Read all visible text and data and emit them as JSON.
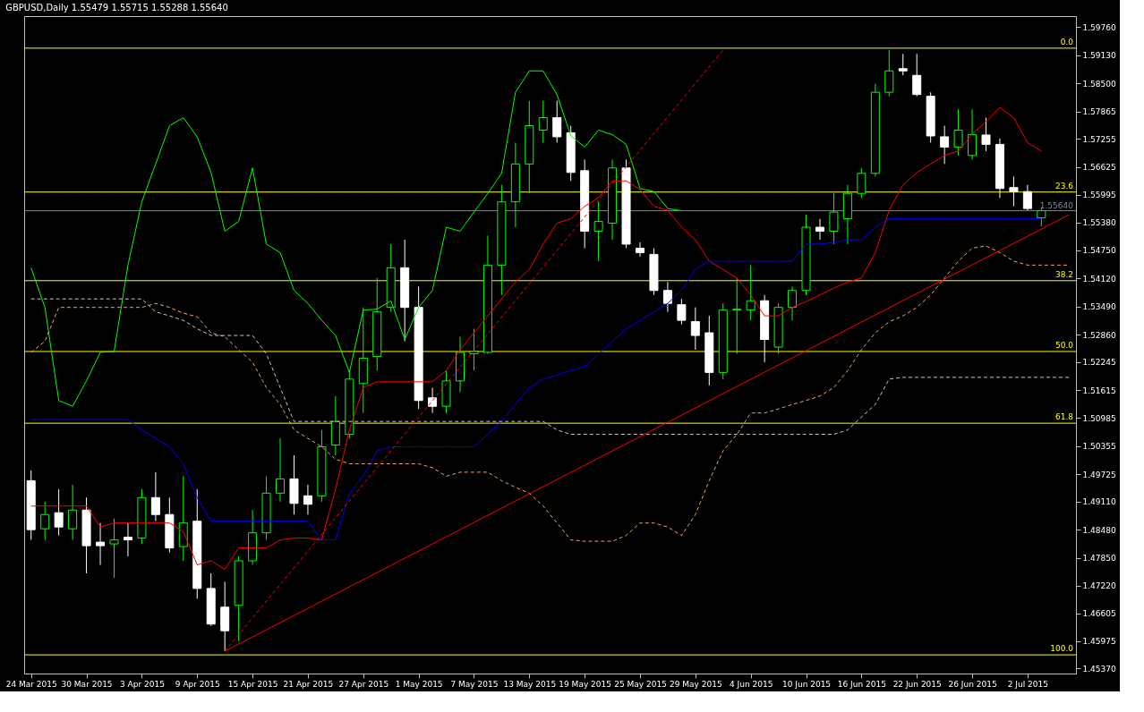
{
  "chart_data": {
    "type": "candlestick",
    "title": "GBPUSD,Daily 1.55479 1.55715 1.55288 1.55640",
    "categories": [
      "24 Mar 2015",
      null,
      null,
      null,
      "30 Mar 2015",
      null,
      null,
      null,
      "3 Apr 2015",
      null,
      null,
      null,
      "9 Apr 2015",
      null,
      null,
      null,
      "15 Apr 2015",
      null,
      null,
      null,
      "21 Apr 2015",
      null,
      null,
      null,
      "27 Apr 2015",
      null,
      null,
      null,
      "1 May 2015",
      null,
      null,
      null,
      "7 May 2015",
      null,
      null,
      null,
      "13 May 2015",
      null,
      null,
      null,
      "19 May 2015",
      null,
      null,
      null,
      "25 May 2015",
      null,
      null,
      null,
      "29 May 2015",
      null,
      null,
      null,
      "4 Jun 2015",
      null,
      null,
      null,
      "10 Jun 2015",
      null,
      null,
      null,
      "16 Jun 2015",
      null,
      null,
      null,
      "22 Jun 2015",
      null,
      null,
      null,
      "26 Jun 2015",
      null,
      null,
      null,
      "2 Jul 2015",
      null,
      null,
      null
    ],
    "ohlc": [
      [
        1.4958,
        1.4981,
        1.4825,
        1.4848
      ],
      [
        1.485,
        1.4911,
        1.4825,
        1.4882
      ],
      [
        1.4886,
        1.4939,
        1.4835,
        1.4854
      ],
      [
        1.485,
        1.4949,
        1.4825,
        1.4892
      ],
      [
        1.4892,
        1.492,
        1.475,
        1.4812
      ],
      [
        1.482,
        1.4863,
        1.4769,
        1.4812
      ],
      [
        1.4816,
        1.4873,
        1.474,
        1.4825
      ],
      [
        1.4831,
        1.4863,
        1.4788,
        1.4825
      ],
      [
        1.4829,
        1.4939,
        1.4816,
        1.492
      ],
      [
        1.492,
        1.4977,
        1.4867,
        1.4882
      ],
      [
        1.4882,
        1.492,
        1.4797,
        1.4807
      ],
      [
        1.481,
        1.4968,
        1.4778,
        1.4863
      ],
      [
        1.4867,
        1.4939,
        1.4693,
        1.4716
      ],
      [
        1.4716,
        1.475,
        1.4632,
        1.4636
      ],
      [
        1.4674,
        1.4731,
        1.4575,
        1.4621
      ],
      [
        1.4678,
        1.4788,
        1.4598,
        1.4778
      ],
      [
        1.4778,
        1.4892,
        1.4769,
        1.4841
      ],
      [
        1.4841,
        1.4968,
        1.4825,
        1.493
      ],
      [
        1.493,
        1.5053,
        1.4911,
        1.4962
      ],
      [
        1.4962,
        1.5015,
        1.4882,
        1.4907
      ],
      [
        1.4924,
        1.4949,
        1.4882,
        1.4905
      ],
      [
        1.4924,
        1.5072,
        1.4911,
        1.5034
      ],
      [
        1.5038,
        1.5148,
        1.5015,
        1.5091
      ],
      [
        1.5062,
        1.5205,
        1.5053,
        1.5186
      ],
      [
        1.5176,
        1.5347,
        1.511,
        1.5233
      ],
      [
        1.5237,
        1.5413,
        1.5205,
        1.5337
      ],
      [
        1.5347,
        1.5489,
        1.5337,
        1.5436
      ],
      [
        1.5436,
        1.5499,
        1.5271,
        1.5347
      ],
      [
        1.5347,
        1.5394,
        1.5119,
        1.5138
      ],
      [
        1.5144,
        1.5167,
        1.511,
        1.5125
      ],
      [
        1.5125,
        1.5205,
        1.511,
        1.5182
      ],
      [
        1.5182,
        1.5281,
        1.5157,
        1.5246
      ],
      [
        1.5243,
        1.5299,
        1.5205,
        1.5248
      ],
      [
        1.5246,
        1.5508,
        1.5243,
        1.5442
      ],
      [
        1.5442,
        1.5622,
        1.5375,
        1.5584
      ],
      [
        1.5584,
        1.5717,
        1.5527,
        1.5669
      ],
      [
        1.5669,
        1.5811,
        1.5603,
        1.5755
      ],
      [
        1.5745,
        1.5811,
        1.5717,
        1.5773
      ],
      [
        1.5773,
        1.5811,
        1.5717,
        1.573
      ],
      [
        1.5739,
        1.5755,
        1.5631,
        1.565
      ],
      [
        1.5654,
        1.5679,
        1.548,
        1.5518
      ],
      [
        1.5518,
        1.5584,
        1.5451,
        1.554
      ],
      [
        1.5536,
        1.5679,
        1.5499,
        1.566
      ],
      [
        1.566,
        1.5679,
        1.548,
        1.5489
      ],
      [
        1.548,
        1.5493,
        1.5461,
        1.547
      ],
      [
        1.5466,
        1.548,
        1.5375,
        1.5385
      ],
      [
        1.5385,
        1.5404,
        1.5337,
        1.5356
      ],
      [
        1.5353,
        1.5366,
        1.5309,
        1.5318
      ],
      [
        1.5315,
        1.5347,
        1.5252,
        1.5284
      ],
      [
        1.529,
        1.5328,
        1.5172,
        1.5201
      ],
      [
        1.5201,
        1.5356,
        1.5186,
        1.5341
      ],
      [
        1.5341,
        1.5413,
        1.5243,
        1.5343
      ],
      [
        1.5341,
        1.5442,
        1.5318,
        1.5362
      ],
      [
        1.5362,
        1.5375,
        1.5224,
        1.5275
      ],
      [
        1.5258,
        1.5356,
        1.5243,
        1.5347
      ],
      [
        1.5347,
        1.5394,
        1.5318,
        1.5385
      ],
      [
        1.5385,
        1.5555,
        1.5375,
        1.5527
      ],
      [
        1.5527,
        1.5546,
        1.5499,
        1.5518
      ],
      [
        1.5518,
        1.5603,
        1.5489,
        1.5561
      ],
      [
        1.5546,
        1.5622,
        1.5489,
        1.5603
      ],
      [
        1.5603,
        1.566,
        1.5593,
        1.5648
      ],
      [
        1.5648,
        1.5849,
        1.5641,
        1.583
      ],
      [
        1.583,
        1.5925,
        1.5821,
        1.5878
      ],
      [
        1.5883,
        1.5916,
        1.5868,
        1.5878
      ],
      [
        1.5868,
        1.5916,
        1.5821,
        1.5825
      ],
      [
        1.5821,
        1.583,
        1.5717,
        1.5732
      ],
      [
        1.573,
        1.5755,
        1.5669,
        1.5707
      ],
      [
        1.5707,
        1.5792,
        1.5688,
        1.5745
      ],
      [
        1.5688,
        1.5792,
        1.5679,
        1.5735
      ],
      [
        1.5734,
        1.5773,
        1.5698,
        1.5713
      ],
      [
        1.5713,
        1.5726,
        1.5593,
        1.5614
      ],
      [
        1.5616,
        1.5641,
        1.5574,
        1.5607
      ],
      [
        1.5607,
        1.5622,
        1.5565,
        1.5569
      ],
      [
        1.5548,
        1.5572,
        1.5529,
        1.5564
      ],
      null,
      null
    ],
    "colors": [
      "#ffffff",
      "#00ff00",
      "#ffffff",
      "#00ff00",
      "#ffffff",
      "#ffffff",
      "#00ff00",
      "#ffffff",
      "#00ff00",
      "#ffffff",
      "#ffffff",
      "#00ff00",
      "#ffffff",
      "#ffffff",
      "#ffffff",
      "#00ff00",
      "#00ff00",
      "#00ff00",
      "#00ff00",
      "#ffffff",
      "#ffffff",
      "#00ff00",
      "#00ff00",
      "#00ff00",
      "#00ff00",
      "#00ff00",
      "#00ff00",
      "#ffffff",
      "#ffffff",
      "#ffffff",
      "#00ff00",
      "#00ff00",
      "#00ff00",
      "#00ff00",
      "#00ff00",
      "#00ff00",
      "#00ff00",
      "#00ff00",
      "#ffffff",
      "#ffffff",
      "#ffffff",
      "#00ff00",
      "#00ff00",
      "#ffffff",
      "#ffffff",
      "#ffffff",
      "#ffffff",
      "#ffffff",
      "#ffffff",
      "#ffffff",
      "#00ff00",
      "#00ff00",
      "#00ff00",
      "#ffffff",
      "#00ff00",
      "#00ff00",
      "#00ff00",
      "#ffffff",
      "#00ff00",
      "#00ff00",
      "#00ff00",
      "#00ff00",
      "#00ff00",
      "#ffffff",
      "#ffffff",
      "#ffffff",
      "#ffffff",
      "#00ff00",
      "#00ff00",
      "#ffffff",
      "#ffffff",
      "#ffffff",
      "#ffffff",
      "#00ff00",
      null,
      null
    ],
    "series": [
      {
        "type": "line",
        "color": "#ff0000",
        "line_style": "solid",
        "values": [
          1.4901,
          1.4901,
          1.4901,
          1.4901,
          1.4901,
          1.4854,
          1.4863,
          1.4863,
          1.4863,
          1.4863,
          1.4863,
          1.4844,
          1.4769,
          1.4778,
          1.4759,
          1.4807,
          1.4807,
          1.4807,
          1.4825,
          1.4829,
          1.4829,
          1.4825,
          1.4939,
          1.5072,
          1.5167,
          1.518,
          1.518,
          1.518,
          1.518,
          1.518,
          1.5205,
          1.5252,
          1.529,
          1.5328,
          1.5366,
          1.5404,
          1.5432,
          1.5489,
          1.5536,
          1.5546,
          1.5574,
          1.5593,
          1.5631,
          1.5631,
          1.5612,
          1.5574,
          1.5565,
          1.5527,
          1.5499,
          1.5451,
          1.5432,
          1.5413,
          1.5375,
          1.5328,
          1.5328,
          1.5347,
          1.536,
          1.5375,
          1.539,
          1.5404,
          1.5413,
          1.547,
          1.5565,
          1.5622,
          1.565,
          1.5669,
          1.5688,
          1.5698,
          1.5736,
          1.5764,
          1.5796,
          1.5773,
          1.5717,
          1.5698,
          null,
          null
        ]
      },
      {
        "type": "line",
        "color": "#0000ff",
        "line_style": "solid",
        "values": [
          1.5095,
          1.5095,
          1.5095,
          1.5095,
          1.5095,
          1.5095,
          1.5095,
          1.5095,
          1.5072,
          1.5053,
          1.5034,
          1.4996,
          1.492,
          1.4867,
          1.4867,
          1.4867,
          1.4867,
          1.4867,
          1.4867,
          1.4867,
          1.4867,
          1.4825,
          1.4825,
          1.493,
          1.4968,
          1.5025,
          1.5034,
          1.5034,
          1.5034,
          1.5034,
          1.5034,
          1.5034,
          1.5034,
          1.5062,
          1.5091,
          1.5129,
          1.5167,
          1.5186,
          1.5195,
          1.5205,
          1.5214,
          1.5243,
          1.5271,
          1.5299,
          1.5318,
          1.5337,
          1.5356,
          1.5385,
          1.5432,
          1.5451,
          1.5451,
          1.5451,
          1.5451,
          1.5451,
          1.5451,
          1.5451,
          1.5489,
          1.5489,
          1.5493,
          1.5499,
          1.5499,
          1.5527,
          1.5546,
          1.5546,
          1.5546,
          1.5546,
          1.5546,
          1.5546,
          1.5546,
          1.5546,
          1.5546,
          1.5546,
          1.5546,
          1.5546,
          null,
          null
        ]
      },
      {
        "type": "line",
        "color": "#00ff00",
        "line_style": "solid",
        "values": [
          1.5436,
          1.5347,
          1.5138,
          1.5125,
          1.5182,
          1.5246,
          1.5248,
          1.5442,
          1.5584,
          1.5669,
          1.5755,
          1.5773,
          1.573,
          1.565,
          1.5518,
          1.554,
          1.566,
          1.5489,
          1.547,
          1.5385,
          1.5356,
          1.5318,
          1.5284,
          1.5201,
          1.5341,
          1.5343,
          1.5362,
          1.5275,
          1.5347,
          1.5385,
          1.5527,
          1.5518,
          1.5561,
          1.5603,
          1.5648,
          1.583,
          1.5878,
          1.5878,
          1.5825,
          1.5732,
          1.5707,
          1.5745,
          1.5735,
          1.5713,
          1.5614,
          1.5607,
          1.5569,
          1.5564,
          null,
          null,
          null,
          null,
          null,
          null,
          null,
          null,
          null,
          null,
          null,
          null,
          null,
          null,
          null,
          null,
          null,
          null,
          null,
          null,
          null,
          null,
          null,
          null,
          null,
          null,
          null,
          null
        ]
      },
      {
        "type": "line",
        "color": "#f4a460",
        "line_style": "dashed",
        "values": [
          1.5246,
          1.5271,
          1.5347,
          1.5347,
          1.5347,
          1.5347,
          1.5347,
          1.5347,
          1.5347,
          1.5356,
          1.5347,
          1.5334,
          1.5326,
          1.529,
          1.5281,
          1.5252,
          1.5224,
          1.5167,
          1.5129,
          1.5072,
          1.5053,
          1.5034,
          1.5006,
          1.4996,
          1.4996,
          1.4996,
          1.4996,
          1.4996,
          1.4996,
          1.4987,
          1.4968,
          1.4977,
          1.4977,
          1.4977,
          1.4958,
          1.4943,
          1.493,
          1.4901,
          1.4863,
          1.4825,
          1.4822,
          1.4822,
          1.4822,
          1.4835,
          1.4863,
          1.4863,
          1.4854,
          1.4835,
          1.4882,
          1.4958,
          1.5025,
          1.5062,
          1.511,
          1.511,
          1.5119,
          1.5129,
          1.5138,
          1.5148,
          1.5167,
          1.5205,
          1.5252,
          1.529,
          1.5315,
          1.5328,
          1.5347,
          1.5375,
          1.5413,
          1.5451,
          1.548,
          1.5485,
          1.547,
          1.5451,
          1.5442,
          1.5442,
          1.5442,
          1.5442
        ]
      },
      {
        "type": "line",
        "color": "#d8bfd8",
        "line_style": "dashed",
        "values": [
          1.5366,
          1.5366,
          1.5366,
          1.5366,
          1.5366,
          1.5366,
          1.5366,
          1.5366,
          1.5366,
          1.5337,
          1.5328,
          1.5318,
          1.5299,
          1.5284,
          1.5284,
          1.5284,
          1.5284,
          1.5243,
          1.5167,
          1.5091,
          1.5091,
          1.5091,
          1.5091,
          1.5091,
          1.5091,
          1.5091,
          1.5091,
          1.5091,
          1.5091,
          1.5091,
          1.5091,
          1.5091,
          1.5091,
          1.5091,
          1.5091,
          1.5091,
          1.5091,
          1.5091,
          1.5072,
          1.5062,
          1.5062,
          1.5062,
          1.5062,
          1.5062,
          1.5062,
          1.5062,
          1.5062,
          1.5062,
          1.5062,
          1.5062,
          1.5062,
          1.5062,
          1.5062,
          1.5062,
          1.5062,
          1.5062,
          1.5062,
          1.5062,
          1.5062,
          1.5072,
          1.5101,
          1.5129,
          1.5186,
          1.519,
          1.519,
          1.519,
          1.519,
          1.519,
          1.519,
          1.519,
          1.519,
          1.519,
          1.519,
          1.519,
          1.519,
          1.519
        ]
      },
      {
        "type": "line",
        "color": "#ff0000",
        "line_style": "solid",
        "values": [
          null,
          null,
          null,
          null,
          null,
          null,
          null,
          null,
          null,
          null,
          null,
          null,
          null,
          null,
          1.4575,
          null,
          null,
          null,
          null,
          null,
          null,
          null,
          null,
          null,
          null,
          null,
          null,
          null,
          null,
          null,
          null,
          null,
          null,
          null,
          null,
          null,
          null,
          null,
          null,
          null,
          null,
          null,
          null,
          null,
          null,
          null,
          null,
          null,
          null,
          null,
          null,
          null,
          null,
          null,
          null,
          null,
          null,
          null,
          null,
          null,
          null,
          null,
          null,
          null,
          null,
          null,
          null,
          null,
          null,
          null,
          null,
          null,
          null,
          null,
          null,
          1.5555
        ]
      },
      {
        "type": "line",
        "color": "#ff0000",
        "line_style": "dashed",
        "values": [
          null,
          null,
          null,
          null,
          null,
          null,
          null,
          null,
          null,
          null,
          null,
          null,
          null,
          null,
          1.4575,
          null,
          null,
          null,
          null,
          null,
          null,
          null,
          null,
          null,
          null,
          null,
          null,
          null,
          null,
          null,
          null,
          null,
          null,
          null,
          null,
          null,
          null,
          null,
          null,
          null,
          null,
          null,
          null,
          null,
          null,
          null,
          null,
          null,
          null,
          null,
          1.5925,
          null,
          null,
          null,
          null,
          null,
          null,
          null,
          null,
          null,
          null,
          null,
          null,
          null,
          null,
          null,
          null,
          null,
          null,
          null,
          null,
          null,
          null,
          null,
          null,
          null
        ]
      }
    ],
    "ylim": [
      1.4525,
      1.6001
    ],
    "yticks": [
      {
        "value": 1.5976,
        "label": "1.59760"
      },
      {
        "value": 1.5913,
        "label": "1.59130"
      },
      {
        "value": 1.585,
        "label": "1.58500"
      },
      {
        "value": 1.57865,
        "label": "1.57865"
      },
      {
        "value": 1.57255,
        "label": "1.57255"
      },
      {
        "value": 1.56625,
        "label": "1.56625"
      },
      {
        "value": 1.55995,
        "label": "1.55995"
      },
      {
        "value": 1.5538,
        "label": "1.55380"
      },
      {
        "value": 1.5475,
        "label": "1.54750"
      },
      {
        "value": 1.5412,
        "label": "1.54120"
      },
      {
        "value": 1.5349,
        "label": "1.53490"
      },
      {
        "value": 1.5286,
        "label": "1.52860"
      },
      {
        "value": 1.52245,
        "label": "1.52245"
      },
      {
        "value": 1.51615,
        "label": "1.51615"
      },
      {
        "value": 1.50985,
        "label": "1.50985"
      },
      {
        "value": 1.50355,
        "label": "1.50355"
      },
      {
        "value": 1.49725,
        "label": "1.49725"
      },
      {
        "value": 1.4911,
        "label": "1.49110"
      },
      {
        "value": 1.4848,
        "label": "1.48480"
      },
      {
        "value": 1.4785,
        "label": "1.47850"
      },
      {
        "value": 1.4722,
        "label": "1.47220"
      },
      {
        "value": 1.46605,
        "label": "1.46605"
      },
      {
        "value": 1.45975,
        "label": "1.45975"
      },
      {
        "value": 1.4537,
        "label": "1.45370"
      }
    ],
    "ref_lines": [
      {
        "axis": "y",
        "value": 1.5929,
        "color": "#ffff00"
      },
      {
        "axis": "y",
        "value": 1.5606,
        "color": "#ffff00"
      },
      {
        "axis": "y",
        "value": 1.5407,
        "color": "#ffff00"
      },
      {
        "axis": "y",
        "value": 1.5248,
        "color": "#ffff00"
      },
      {
        "axis": "y",
        "value": 1.5087,
        "color": "#ffff00"
      },
      {
        "axis": "y",
        "value": 1.4567,
        "color": "#ffff00"
      },
      {
        "axis": "y",
        "value": 1.5564,
        "label": "1.55640",
        "color": "#778899"
      }
    ],
    "annotations": [
      {
        "text": "0.0",
        "y": 1.5929
      },
      {
        "text": "23.6",
        "y": 1.5606
      },
      {
        "text": "38.2",
        "y": 1.5407
      },
      {
        "text": "50.0",
        "y": 1.5248
      },
      {
        "text": "61.8",
        "y": 1.5087
      },
      {
        "text": "100.0",
        "y": 1.4567
      }
    ],
    "grid": false
  }
}
